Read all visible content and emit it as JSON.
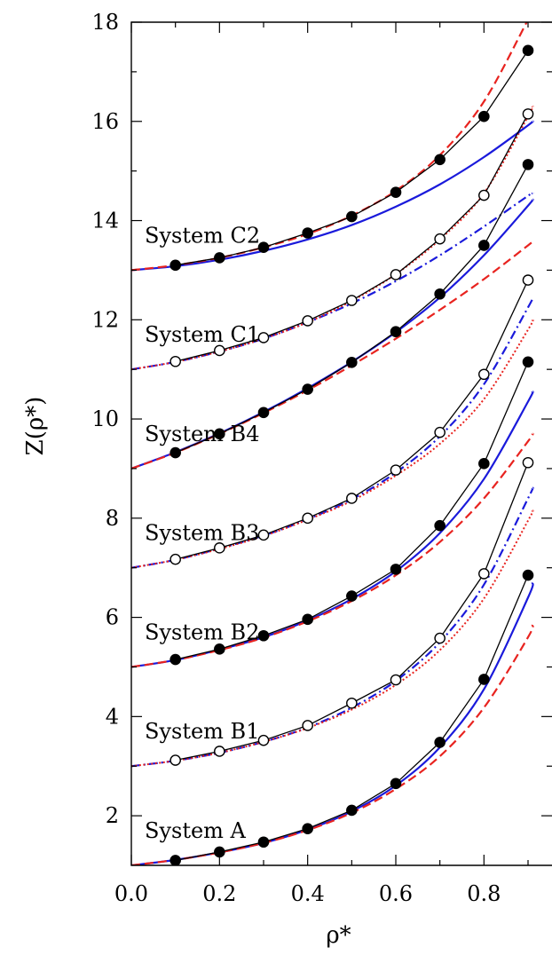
{
  "chart_data": {
    "type": "line",
    "xlabel": "ρ*",
    "ylabel": "Z(ρ*)",
    "xlim": [
      0.0,
      0.9
    ],
    "ylim": [
      1,
      18
    ],
    "xticks": [
      "0.0",
      "0.2",
      "0.4",
      "0.6",
      "0.8"
    ],
    "yticks": [
      "2",
      "4",
      "6",
      "8",
      "10",
      "12",
      "14",
      "16",
      "18"
    ],
    "grid": false,
    "colors": {
      "simulation": "#000000",
      "red_dashed": "#e8231f",
      "red_dotted": "#e8231f",
      "blue_solid": "#1a1adb",
      "blue_dashdot": "#1a1adb"
    },
    "systems": [
      {
        "label": "System A",
        "marker": "filled",
        "x": [
          0.1,
          0.2,
          0.3,
          0.4,
          0.5,
          0.6,
          0.7,
          0.8,
          0.9
        ],
        "y": [
          1.1,
          1.27,
          1.47,
          1.74,
          2.11,
          2.65,
          3.48,
          4.75,
          6.85
        ],
        "theory": [
          {
            "style": "blue-solid",
            "x": [
              0,
              0.1,
              0.2,
              0.3,
              0.4,
              0.5,
              0.6,
              0.7,
              0.8,
              0.9,
              0.91
            ],
            "y": [
              1.0,
              1.11,
              1.26,
              1.45,
              1.72,
              2.09,
              2.61,
              3.38,
              4.55,
              6.4,
              6.7
            ]
          },
          {
            "style": "red-dashed",
            "x": [
              0,
              0.1,
              0.2,
              0.3,
              0.4,
              0.5,
              0.6,
              0.7,
              0.8,
              0.9,
              0.91
            ],
            "y": [
              1.0,
              1.11,
              1.26,
              1.45,
              1.71,
              2.06,
              2.54,
              3.2,
              4.18,
              5.6,
              5.85
            ]
          }
        ]
      },
      {
        "label": "System B1",
        "marker": "open",
        "x": [
          0.1,
          0.2,
          0.3,
          0.4,
          0.5,
          0.6,
          0.7,
          0.8,
          0.9
        ],
        "y": [
          3.12,
          3.3,
          3.52,
          3.82,
          4.27,
          4.74,
          5.58,
          6.88,
          9.12
        ],
        "theory": [
          {
            "style": "blue-dashdot",
            "x": [
              0,
              0.1,
              0.2,
              0.3,
              0.4,
              0.5,
              0.6,
              0.7,
              0.8,
              0.9,
              0.91
            ],
            "y": [
              3.0,
              3.11,
              3.27,
              3.49,
              3.78,
              4.18,
              4.72,
              5.5,
              6.66,
              8.4,
              8.6
            ]
          },
          {
            "style": "red-dotted",
            "x": [
              0,
              0.1,
              0.2,
              0.3,
              0.4,
              0.5,
              0.6,
              0.7,
              0.8,
              0.9,
              0.91
            ],
            "y": [
              3.0,
              3.11,
              3.27,
              3.49,
              3.77,
              4.14,
              4.64,
              5.34,
              6.38,
              7.95,
              8.15
            ]
          }
        ]
      },
      {
        "label": "System B2",
        "marker": "filled",
        "x": [
          0.1,
          0.2,
          0.3,
          0.4,
          0.5,
          0.6,
          0.7,
          0.8,
          0.9
        ],
        "y": [
          5.15,
          5.36,
          5.63,
          5.96,
          6.43,
          6.97,
          7.85,
          9.1,
          11.15
        ],
        "theory": [
          {
            "style": "blue-solid",
            "x": [
              0,
              0.1,
              0.2,
              0.3,
              0.4,
              0.5,
              0.6,
              0.7,
              0.8,
              0.9,
              0.91
            ],
            "y": [
              5.0,
              5.14,
              5.35,
              5.6,
              5.94,
              6.37,
              6.93,
              7.7,
              8.79,
              10.35,
              10.55
            ]
          },
          {
            "style": "red-dashed",
            "x": [
              0,
              0.1,
              0.2,
              0.3,
              0.4,
              0.5,
              0.6,
              0.7,
              0.8,
              0.9,
              0.91
            ],
            "y": [
              5.0,
              5.14,
              5.34,
              5.59,
              5.92,
              6.33,
              6.85,
              7.52,
              8.4,
              9.55,
              9.7
            ]
          }
        ]
      },
      {
        "label": "System B3",
        "marker": "open",
        "x": [
          0.1,
          0.2,
          0.3,
          0.4,
          0.5,
          0.6,
          0.7,
          0.8,
          0.9
        ],
        "y": [
          7.17,
          7.4,
          7.66,
          8.0,
          8.4,
          8.97,
          9.73,
          10.9,
          12.8
        ],
        "theory": [
          {
            "style": "blue-dashdot",
            "x": [
              0,
              0.1,
              0.2,
              0.3,
              0.4,
              0.5,
              0.6,
              0.7,
              0.8,
              0.9,
              0.91
            ],
            "y": [
              7.0,
              7.16,
              7.39,
              7.65,
              7.98,
              8.38,
              8.92,
              9.65,
              10.7,
              12.25,
              12.45
            ]
          },
          {
            "style": "red-dotted",
            "x": [
              0,
              0.1,
              0.2,
              0.3,
              0.4,
              0.5,
              0.6,
              0.7,
              0.8,
              0.9,
              0.91
            ],
            "y": [
              7.0,
              7.16,
              7.38,
              7.64,
              7.97,
              8.35,
              8.86,
              9.5,
              10.4,
              11.8,
              12.0
            ]
          }
        ]
      },
      {
        "label": "System B4",
        "marker": "filled",
        "x": [
          0.1,
          0.2,
          0.3,
          0.4,
          0.5,
          0.6,
          0.7,
          0.8,
          0.9
        ],
        "y": [
          9.32,
          9.7,
          10.13,
          10.6,
          11.14,
          11.76,
          12.52,
          13.5,
          15.13
        ],
        "theory": [
          {
            "style": "blue-solid",
            "x": [
              0,
              0.1,
              0.2,
              0.3,
              0.4,
              0.5,
              0.6,
              0.7,
              0.8,
              0.9,
              0.91
            ],
            "y": [
              9.0,
              9.33,
              9.71,
              10.14,
              10.62,
              11.15,
              11.75,
              12.45,
              13.3,
              14.3,
              14.42
            ]
          },
          {
            "style": "red-dashed",
            "x": [
              0,
              0.1,
              0.2,
              0.3,
              0.4,
              0.5,
              0.6,
              0.7,
              0.8,
              0.9,
              0.91
            ],
            "y": [
              9.0,
              9.32,
              9.7,
              10.12,
              10.58,
              11.08,
              11.62,
              12.2,
              12.82,
              13.5,
              13.58
            ]
          }
        ]
      },
      {
        "label": "System C1",
        "marker": "open",
        "x": [
          0.1,
          0.2,
          0.3,
          0.4,
          0.5,
          0.6,
          0.7,
          0.8,
          0.9
        ],
        "y": [
          11.16,
          11.38,
          11.64,
          11.98,
          12.39,
          12.91,
          13.63,
          14.51,
          16.15
        ],
        "theory": [
          {
            "style": "blue-dashdot",
            "x": [
              0,
              0.1,
              0.2,
              0.3,
              0.4,
              0.5,
              0.6,
              0.7,
              0.8,
              0.9,
              0.91
            ],
            "y": [
              11.0,
              11.15,
              11.36,
              11.62,
              11.95,
              12.33,
              12.78,
              13.3,
              13.88,
              14.5,
              14.55
            ]
          },
          {
            "style": "red-dotted",
            "x": [
              0,
              0.1,
              0.2,
              0.3,
              0.4,
              0.5,
              0.6,
              0.7,
              0.8,
              0.9,
              0.91
            ],
            "y": [
              11.0,
              11.15,
              11.36,
              11.62,
              11.95,
              12.38,
              12.92,
              13.62,
              14.55,
              16.1,
              16.3
            ]
          }
        ]
      },
      {
        "label": "System C2",
        "marker": "filled",
        "x": [
          0.1,
          0.2,
          0.3,
          0.4,
          0.5,
          0.6,
          0.7,
          0.8,
          0.9
        ],
        "y": [
          13.1,
          13.25,
          13.46,
          13.75,
          14.08,
          14.57,
          15.23,
          16.1,
          17.43
        ],
        "theory": [
          {
            "style": "blue-solid",
            "x": [
              0,
              0.1,
              0.2,
              0.3,
              0.4,
              0.5,
              0.6,
              0.7,
              0.8,
              0.9,
              0.91
            ],
            "y": [
              13.0,
              13.08,
              13.21,
              13.39,
              13.62,
              13.91,
              14.28,
              14.73,
              15.28,
              15.92,
              16.0
            ]
          },
          {
            "style": "red-dashed",
            "x": [
              0,
              0.1,
              0.2,
              0.3,
              0.4,
              0.5,
              0.6,
              0.7,
              0.8,
              0.9,
              0.91
            ],
            "y": [
              13.0,
              13.1,
              13.25,
              13.46,
              13.73,
              14.1,
              14.6,
              15.32,
              16.4,
              18.05,
              18.2
            ]
          }
        ]
      }
    ]
  }
}
